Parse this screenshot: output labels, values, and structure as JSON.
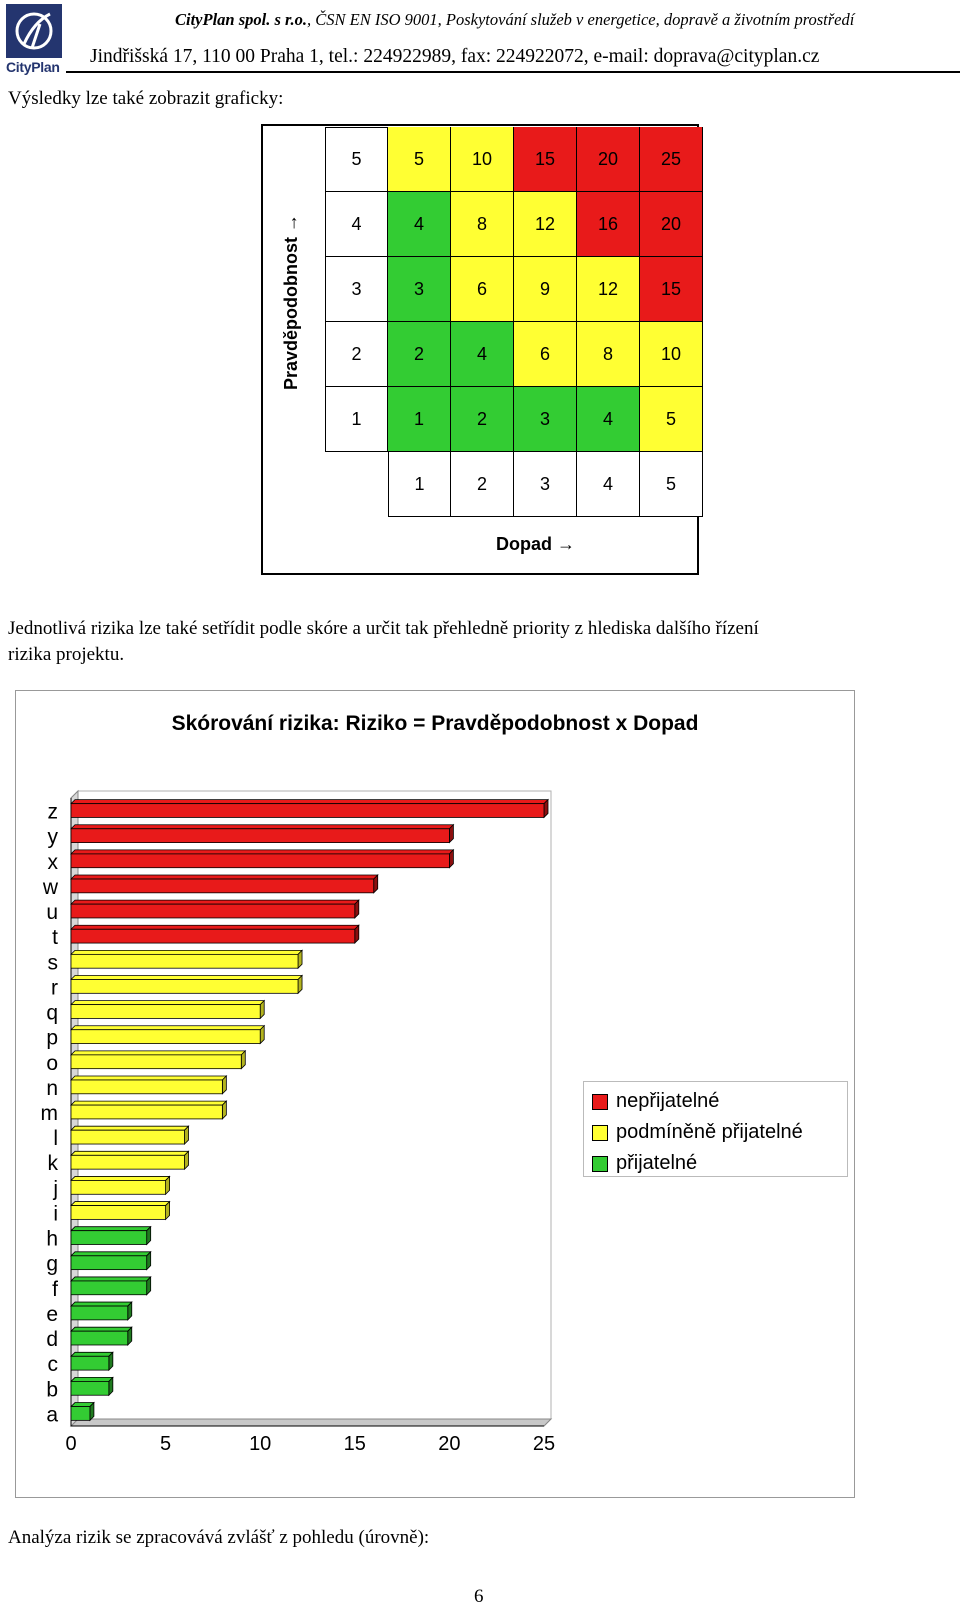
{
  "header": {
    "logo_text": "CityPlan",
    "company": "CityPlan spol. s r.o.",
    "line1_rest": ", ČSN EN ISO 9001, Poskytování služeb v energetice, dopravě a životním prostředí",
    "line2": "Jindřišská 17, 110 00  Praha 1, tel.: 224922989, fax: 224922072, e-mail: doprava@cityplan.cz"
  },
  "text": {
    "intro": "Výsledky lze také zobrazit graficky:",
    "para_line1": "Jednotlivá rizika lze také setřídit podle skóre a určit tak přehledně priority z hlediska dalšího řízení",
    "para_line2": "rizika projektu.",
    "outro": "Analýza rizik se zpracovává zvlášť z pohledu (úrovně):",
    "page_number": "6"
  },
  "matrix": {
    "ylabel": "Pravděpodobnost →",
    "xlabel": "Dopad →",
    "colors": {
      "green": "#33cc33",
      "yellow": "#ffff33",
      "red": "#e81a1a"
    },
    "rows": [
      {
        "label": "5",
        "cells": [
          {
            "v": "5",
            "c": "yellow"
          },
          {
            "v": "10",
            "c": "yellow"
          },
          {
            "v": "15",
            "c": "red"
          },
          {
            "v": "20",
            "c": "red"
          },
          {
            "v": "25",
            "c": "red"
          }
        ]
      },
      {
        "label": "4",
        "cells": [
          {
            "v": "4",
            "c": "green"
          },
          {
            "v": "8",
            "c": "yellow"
          },
          {
            "v": "12",
            "c": "yellow"
          },
          {
            "v": "16",
            "c": "red"
          },
          {
            "v": "20",
            "c": "red"
          }
        ]
      },
      {
        "label": "3",
        "cells": [
          {
            "v": "3",
            "c": "green"
          },
          {
            "v": "6",
            "c": "yellow"
          },
          {
            "v": "9",
            "c": "yellow"
          },
          {
            "v": "12",
            "c": "yellow"
          },
          {
            "v": "15",
            "c": "red"
          }
        ]
      },
      {
        "label": "2",
        "cells": [
          {
            "v": "2",
            "c": "green"
          },
          {
            "v": "4",
            "c": "green"
          },
          {
            "v": "6",
            "c": "yellow"
          },
          {
            "v": "8",
            "c": "yellow"
          },
          {
            "v": "10",
            "c": "yellow"
          }
        ]
      },
      {
        "label": "1",
        "cells": [
          {
            "v": "1",
            "c": "green"
          },
          {
            "v": "2",
            "c": "green"
          },
          {
            "v": "3",
            "c": "green"
          },
          {
            "v": "4",
            "c": "green"
          },
          {
            "v": "5",
            "c": "yellow"
          }
        ]
      }
    ],
    "col_labels": [
      "1",
      "2",
      "3",
      "4",
      "5"
    ]
  },
  "chart_data": {
    "type": "bar",
    "orientation": "horizontal",
    "title": "Skórování rizika: Riziko = Pravděpodobnost x Dopad",
    "categories": [
      "z",
      "y",
      "x",
      "w",
      "u",
      "t",
      "s",
      "r",
      "q",
      "p",
      "o",
      "n",
      "m",
      "l",
      "k",
      "j",
      "i",
      "h",
      "g",
      "f",
      "e",
      "d",
      "c",
      "b",
      "a"
    ],
    "values": [
      25,
      20,
      20,
      16,
      15,
      15,
      12,
      12,
      10,
      10,
      9,
      8,
      8,
      6,
      6,
      5,
      5,
      4,
      4,
      4,
      3,
      3,
      2,
      2,
      1
    ],
    "levels": [
      "red",
      "red",
      "red",
      "red",
      "red",
      "red",
      "yellow",
      "yellow",
      "yellow",
      "yellow",
      "yellow",
      "yellow",
      "yellow",
      "yellow",
      "yellow",
      "yellow",
      "yellow",
      "green",
      "green",
      "green",
      "green",
      "green",
      "green",
      "green",
      "green"
    ],
    "xlim": [
      0,
      25
    ],
    "xticks": [
      "0",
      "5",
      "10",
      "15",
      "20",
      "25"
    ],
    "legend": [
      {
        "label": "nepřijatelné",
        "color": "#e81a1a"
      },
      {
        "label": "podmíněně přijatelné",
        "color": "#ffff33"
      },
      {
        "label": "přijatelné",
        "color": "#33cc33"
      }
    ],
    "legend_position": "right"
  }
}
